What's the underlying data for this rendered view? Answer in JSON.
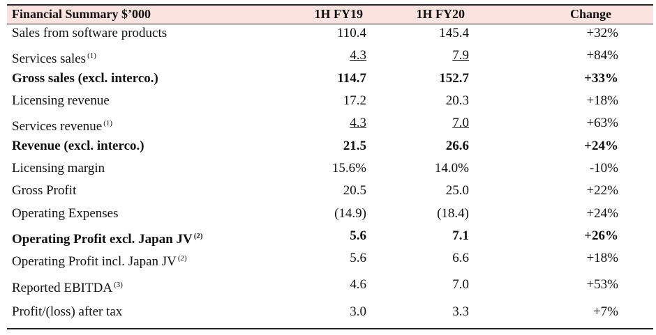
{
  "table": {
    "header": [
      "Financial Summary $’000",
      "1H FY19",
      "1H FY20",
      "Change"
    ],
    "rows": [
      {
        "label": "Sales from software products",
        "cells": [
          "110.4",
          "145.4",
          "+32%"
        ]
      },
      {
        "label": "Services sales",
        "note": "(1)",
        "cells": [
          "4.3",
          "7.9",
          "+84%"
        ],
        "underline": true
      },
      {
        "label": "Gross sales (excl. interco.)",
        "cells": [
          "114.7",
          "152.7",
          "+33%"
        ],
        "bold": true
      },
      {
        "label": "Licensing revenue",
        "cells": [
          "17.2",
          "20.3",
          "+18%"
        ]
      },
      {
        "label": "Services revenue",
        "note": "(1)",
        "cells": [
          "4.3",
          "7.0",
          "+63%"
        ],
        "underline": true
      },
      {
        "label": "Revenue (excl. interco.)",
        "cells": [
          "21.5",
          "26.6",
          "+24%"
        ],
        "bold": true
      },
      {
        "label": "Licensing margin",
        "cells": [
          "15.6%",
          "14.0%",
          "-10%"
        ]
      },
      {
        "label": "Gross Profit",
        "cells": [
          "20.5",
          "25.0",
          "+22%"
        ]
      },
      {
        "label": "Operating Expenses",
        "cells": [
          "(14.9)",
          "(18.4)",
          "+24%"
        ]
      },
      {
        "label": "Operating Profit excl. Japan JV",
        "note": "(2)",
        "cells": [
          "5.6",
          "7.1",
          "+26%"
        ],
        "bold": true
      },
      {
        "label": "Operating Profit incl. Japan JV",
        "note": "(2)",
        "cells": [
          "5.6",
          "6.6",
          "+18%"
        ]
      },
      {
        "label": "Reported EBITDA",
        "note": "(3)",
        "cells": [
          "4.6",
          "7.0",
          "+53%"
        ]
      },
      {
        "label": "Profit/(loss) after tax",
        "cells": [
          "3.0",
          "3.3",
          "+7%"
        ]
      }
    ]
  }
}
